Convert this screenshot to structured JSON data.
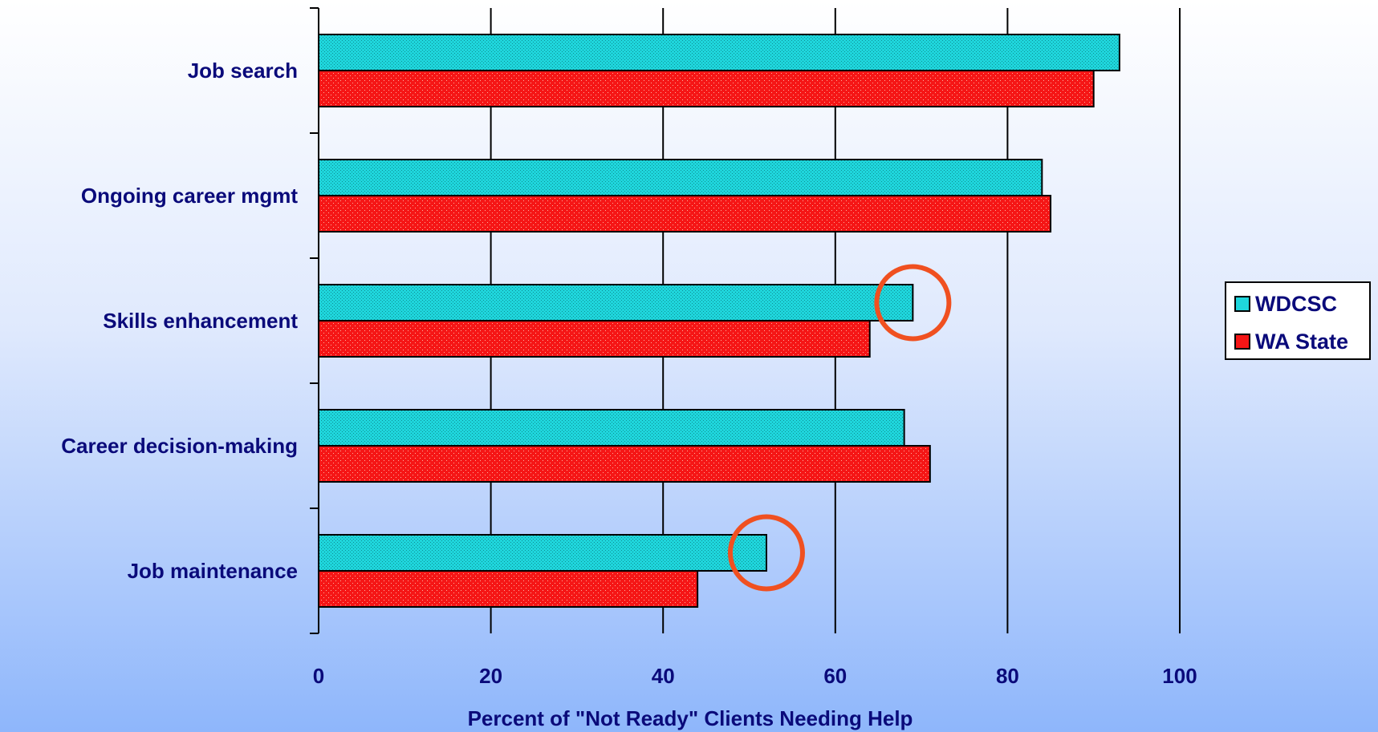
{
  "chart_data": {
    "type": "bar",
    "orientation": "horizontal",
    "categories": [
      "Job search",
      "Ongoing career mgmt",
      "Skills enhancement",
      "Career decision-making",
      "Job maintenance"
    ],
    "series": [
      {
        "name": "WDCSC",
        "values": [
          93,
          84,
          69,
          68,
          52
        ],
        "color": "#1fd6dc"
      },
      {
        "name": "WA State",
        "values": [
          90,
          85,
          64,
          71,
          44
        ],
        "color": "#f51616"
      }
    ],
    "xlabel": "Percent of \"Not Ready\" Clients Needing Help",
    "ylabel": "",
    "xlim": [
      0,
      100
    ],
    "xticks": [
      "0",
      "20",
      "40",
      "60",
      "80",
      "100"
    ],
    "grid": "vertical",
    "legend_position": "right",
    "annotations": [
      {
        "type": "circle",
        "category": "Skills enhancement",
        "series": "WDCSC",
        "color": "#f05020"
      },
      {
        "type": "circle",
        "category": "Job maintenance",
        "series": "WDCSC",
        "color": "#f05020"
      }
    ]
  }
}
